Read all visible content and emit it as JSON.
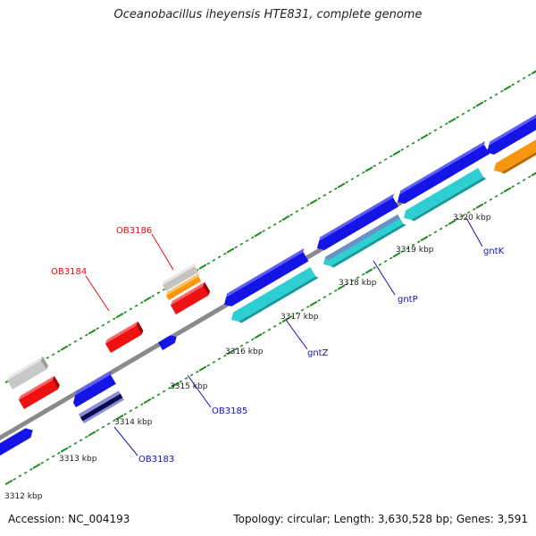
{
  "title": "Oceanobacillus iheyensis HTE831, complete genome",
  "footer": {
    "accession": "Accession: NC_004193",
    "topology": "Topology: circular; Length: 3,630,528 bp; Genes: 3,591"
  },
  "colors": {
    "backbone": "#8a8a8a",
    "tick": "#1e8c1e",
    "forward_cds": "#1414e6",
    "reverse_cds": "#2dcfd2",
    "selected_red": "#ee1111",
    "grey_feature": "#c4c4c4",
    "orange_feature": "#f7960f",
    "label_red": "#dd1010",
    "label_blue": "#1010bb"
  },
  "scale_labels": [
    {
      "text": "3312 kbp"
    },
    {
      "text": "3313 kbp"
    },
    {
      "text": "3314 kbp"
    },
    {
      "text": "3315 kbp"
    },
    {
      "text": "3316 kbp"
    },
    {
      "text": "3317 kbp"
    },
    {
      "text": "3318 kbp"
    },
    {
      "text": "3319 kbp"
    },
    {
      "text": "3320 kbp"
    }
  ],
  "gene_labels": [
    {
      "text": "OB3186",
      "color": "red"
    },
    {
      "text": "OB3184",
      "color": "red"
    },
    {
      "text": "gntK",
      "color": "blue"
    },
    {
      "text": "gntP",
      "color": "blue"
    },
    {
      "text": "gntZ",
      "color": "blue"
    },
    {
      "text": "OB3185",
      "color": "blue"
    },
    {
      "text": "OB3183",
      "color": "blue"
    }
  ]
}
